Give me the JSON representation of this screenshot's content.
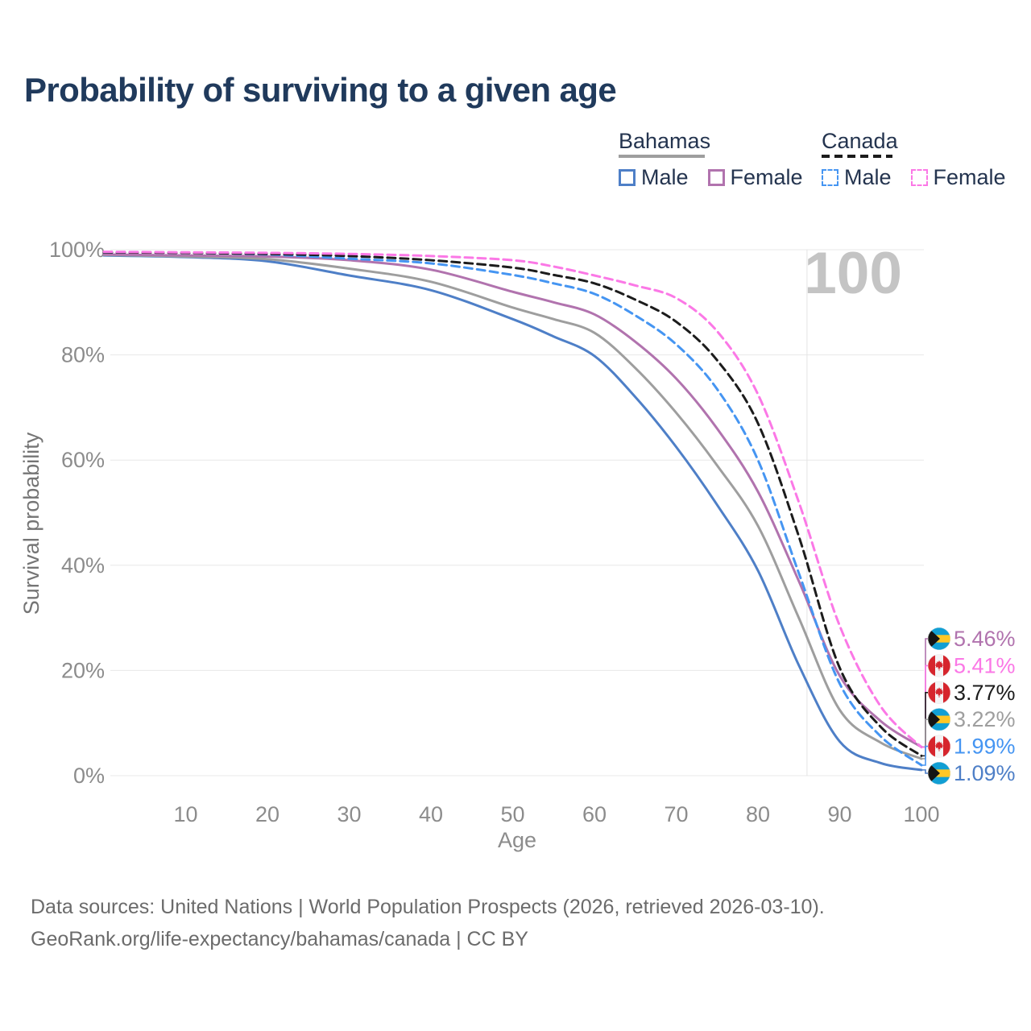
{
  "title": "Probability of surviving to a given age",
  "legend": {
    "groups": [
      {
        "label": "Bahamas",
        "line_style": "solid",
        "underline_color": "#9e9e9e",
        "items": [
          {
            "label": "Male",
            "color": "#4e7fc7",
            "dashed": false
          },
          {
            "label": "Female",
            "color": "#b173ae",
            "dashed": false
          }
        ]
      },
      {
        "label": "Canada",
        "line_style": "dashed",
        "underline_color": "#1c1c1c",
        "items": [
          {
            "label": "Male",
            "color": "#4595f2",
            "dashed": true
          },
          {
            "label": "Female",
            "color": "#fb78e6",
            "dashed": true
          }
        ]
      }
    ]
  },
  "watermark": "100",
  "axes": {
    "y_label": "Survival probability",
    "x_label": "Age",
    "y_tick_values": [
      0,
      20,
      40,
      60,
      80,
      100
    ],
    "y_tick_suffix": "%",
    "x_tick_values": [
      10,
      20,
      30,
      40,
      50,
      60,
      70,
      80,
      90,
      100
    ]
  },
  "chart_data": {
    "type": "line",
    "title": "Probability of surviving to a given age",
    "xlabel": "Age",
    "ylabel": "Survival probability",
    "xlim": [
      0,
      100
    ],
    "ylim": [
      0,
      100
    ],
    "grid": "horizontal",
    "crosshair_age": 86,
    "ages": [
      0,
      10,
      20,
      30,
      40,
      50,
      55,
      60,
      65,
      70,
      75,
      80,
      85,
      90,
      95,
      100
    ],
    "series": [
      {
        "name": "Bahamas Male",
        "country": "Bahamas",
        "sex": "Male",
        "color": "#4e7fc7",
        "dashed": false,
        "values": [
          98.9,
          98.6,
          97.8,
          95.1,
          92.3,
          86.8,
          83.5,
          79.8,
          72.0,
          62.5,
          51.5,
          39.0,
          21.0,
          6.5,
          2.4,
          1.09
        ]
      },
      {
        "name": "Bahamas Total",
        "country": "Bahamas",
        "sex": "Total",
        "color": "#9e9e9e",
        "dashed": false,
        "values": [
          99.0,
          98.7,
          98.2,
          96.4,
          93.9,
          89.0,
          86.8,
          84.2,
          77.5,
          69.0,
          59.0,
          47.5,
          30.0,
          12.5,
          6.3,
          3.22
        ]
      },
      {
        "name": "Bahamas Female",
        "country": "Bahamas",
        "sex": "Female",
        "color": "#b173ae",
        "dashed": false,
        "values": [
          99.1,
          98.9,
          98.7,
          98.0,
          96.2,
          92.0,
          90.0,
          87.7,
          82.5,
          75.5,
          66.0,
          54.0,
          37.0,
          19.0,
          10.4,
          5.46
        ]
      },
      {
        "name": "Canada Male",
        "country": "Canada",
        "sex": "Male",
        "color": "#4595f2",
        "dashed": true,
        "values": [
          99.5,
          99.4,
          99.1,
          98.3,
          97.4,
          95.2,
          93.6,
          91.6,
          87.5,
          82.0,
          73.5,
          60.0,
          38.5,
          17.5,
          7.5,
          1.99
        ]
      },
      {
        "name": "Canada Total",
        "country": "Canada",
        "sex": "Total",
        "color": "#1c1c1c",
        "dashed": true,
        "values": [
          99.5,
          99.4,
          99.2,
          98.8,
          98.0,
          96.6,
          95.2,
          93.6,
          90.5,
          86.3,
          79.0,
          67.0,
          45.5,
          20.5,
          9.3,
          3.77
        ]
      },
      {
        "name": "Canada Female",
        "country": "Canada",
        "sex": "Female",
        "color": "#fb78e6",
        "dashed": true,
        "values": [
          99.6,
          99.5,
          99.4,
          99.2,
          98.8,
          98.0,
          96.8,
          95.1,
          93.2,
          90.8,
          84.5,
          72.5,
          52.0,
          28.5,
          13.2,
          5.41
        ]
      }
    ],
    "end_labels_top_to_bottom": [
      {
        "value": "5.46%",
        "flag": "bahamas",
        "series": "Bahamas Female"
      },
      {
        "value": "5.41%",
        "flag": "canada",
        "series": "Canada Female"
      },
      {
        "value": "3.77%",
        "flag": "canada",
        "series": "Canada Total"
      },
      {
        "value": "3.22%",
        "flag": "bahamas",
        "series": "Bahamas Total"
      },
      {
        "value": "1.99%",
        "flag": "canada",
        "series": "Canada Male"
      },
      {
        "value": "1.09%",
        "flag": "bahamas",
        "series": "Bahamas Male"
      }
    ]
  },
  "footer": {
    "line1": "Data sources: United Nations | World Population Prospects (2026, retrieved 2026-03-10).",
    "line2": "GeoRank.org/life-expectancy/bahamas/canada | CC BY"
  },
  "colors": {
    "title": "#203a5c",
    "legend_text": "#24344f",
    "axis_text": "#8c8c8c",
    "y_axis_label": "#757575",
    "watermark": "#c4c4c4",
    "grid": "#e8e8e8",
    "footer": "#6b6b6b",
    "flag_bahamas_aqua": "#119fd4",
    "flag_bahamas_gold": "#ffc726",
    "flag_bahamas_black": "#141414",
    "flag_canada_red": "#d6252d",
    "flag_canada_white": "#f4f4f5"
  }
}
